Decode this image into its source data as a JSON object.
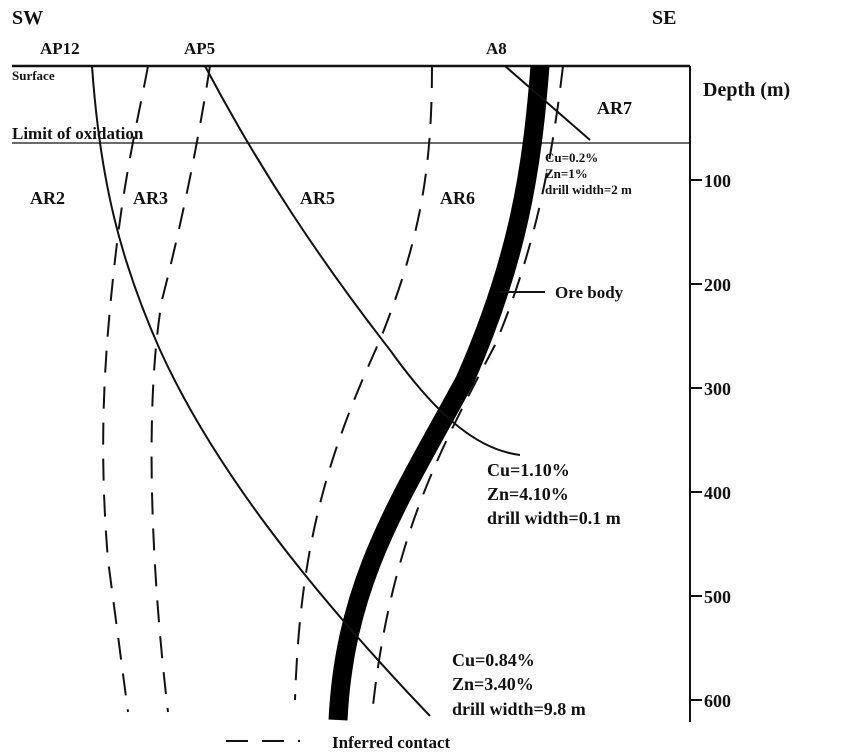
{
  "header": {
    "left": "SW",
    "right": "SE"
  },
  "holes": [
    "AP12",
    "AP5",
    "A8"
  ],
  "levels": {
    "surface": "Surface",
    "oxidation": "Limit of oxidation"
  },
  "units": [
    "AR2",
    "AR3",
    "AR5",
    "AR6",
    "AR7"
  ],
  "axis": {
    "label": "Depth (m)",
    "ticks": [
      100,
      200,
      300,
      400,
      500,
      600
    ]
  },
  "ore_label": "Ore body",
  "intercepts": [
    [
      "Cu=0.2%",
      "Zn=1%",
      "drill width=2 m"
    ],
    [
      "Cu=1.10%",
      "Zn=4.10%",
      "drill width=0.1 m"
    ],
    [
      "Cu=0.84%",
      "Zn=3.40%",
      "drill width=9.8 m"
    ]
  ],
  "legend": "Inferred contact"
}
